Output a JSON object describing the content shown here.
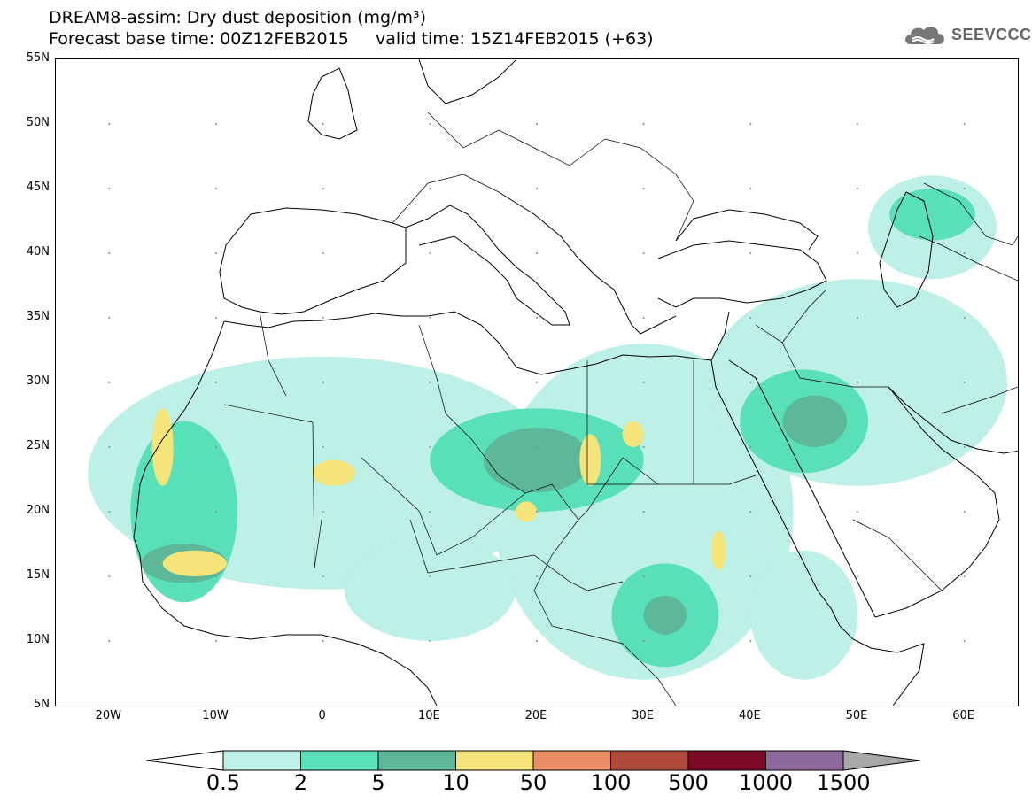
{
  "title": {
    "line1": "DREAM8-assim: Dry dust deposition (mg/m³)",
    "line2": "Forecast base time: 00Z12FEB2015     valid time: 15Z14FEB2015 (+63)"
  },
  "logo": {
    "text": "SEEVCCC",
    "icon": "cloud-icon"
  },
  "axes": {
    "lat_labels": [
      "55N",
      "50N",
      "45N",
      "40N",
      "35N",
      "30N",
      "25N",
      "20N",
      "15N",
      "10N",
      "5N"
    ],
    "lon_labels": [
      "20W",
      "10W",
      "0",
      "10E",
      "20E",
      "30E",
      "40E",
      "50E",
      "60E"
    ],
    "lat_range": [
      5,
      55
    ],
    "lon_range": [
      -25,
      65
    ]
  },
  "legend": {
    "labels": [
      "0.5",
      "2",
      "5",
      "10",
      "50",
      "100",
      "500",
      "1000",
      "1500"
    ],
    "colors": [
      "#bdf0e6",
      "#5ae0b8",
      "#5cb898",
      "#f5e47a",
      "#ec8c64",
      "#b04a3c",
      "#7a0a28",
      "#8c6a9c",
      "#a8a8a8"
    ]
  },
  "map_data": {
    "field": "dry dust deposition",
    "units": "mg/m³",
    "regions": [
      {
        "level": 0,
        "lon": 0,
        "lat": 23,
        "rx": 22,
        "ry": 9
      },
      {
        "level": 0,
        "lon": 30,
        "lat": 20,
        "rx": 14,
        "ry": 13
      },
      {
        "level": 0,
        "lon": 50,
        "lat": 30,
        "rx": 14,
        "ry": 8
      },
      {
        "level": 0,
        "lon": 57,
        "lat": 42,
        "rx": 6,
        "ry": 4
      },
      {
        "level": 0,
        "lon": 45,
        "lat": 12,
        "rx": 5,
        "ry": 5
      },
      {
        "level": 0,
        "lon": 10,
        "lat": 14,
        "rx": 8,
        "ry": 4
      },
      {
        "level": 1,
        "lon": -13,
        "lat": 20,
        "rx": 5,
        "ry": 7
      },
      {
        "level": 1,
        "lon": 20,
        "lat": 24,
        "rx": 10,
        "ry": 4
      },
      {
        "level": 1,
        "lon": 45,
        "lat": 27,
        "rx": 6,
        "ry": 4
      },
      {
        "level": 1,
        "lon": 32,
        "lat": 12,
        "rx": 5,
        "ry": 4
      },
      {
        "level": 1,
        "lon": 57,
        "lat": 43,
        "rx": 4,
        "ry": 2
      },
      {
        "level": 2,
        "lon": -13,
        "lat": 16,
        "rx": 4,
        "ry": 1.5
      },
      {
        "level": 2,
        "lon": 20,
        "lat": 24,
        "rx": 5,
        "ry": 2.5
      },
      {
        "level": 2,
        "lon": 46,
        "lat": 27,
        "rx": 3,
        "ry": 2
      },
      {
        "level": 2,
        "lon": 32,
        "lat": 12,
        "rx": 2,
        "ry": 1.5
      },
      {
        "level": 3,
        "lon": -12,
        "lat": 16,
        "rx": 3,
        "ry": 1
      },
      {
        "level": 3,
        "lon": -15,
        "lat": 25,
        "rx": 1,
        "ry": 3
      },
      {
        "level": 3,
        "lon": 1,
        "lat": 23,
        "rx": 2,
        "ry": 1
      },
      {
        "level": 3,
        "lon": 25,
        "lat": 24,
        "rx": 1,
        "ry": 2
      },
      {
        "level": 3,
        "lon": 29,
        "lat": 26,
        "rx": 1,
        "ry": 1
      },
      {
        "level": 3,
        "lon": 19,
        "lat": 20,
        "rx": 1,
        "ry": 0.8
      },
      {
        "level": 3,
        "lon": 37,
        "lat": 17,
        "rx": 0.7,
        "ry": 1.5
      }
    ]
  }
}
